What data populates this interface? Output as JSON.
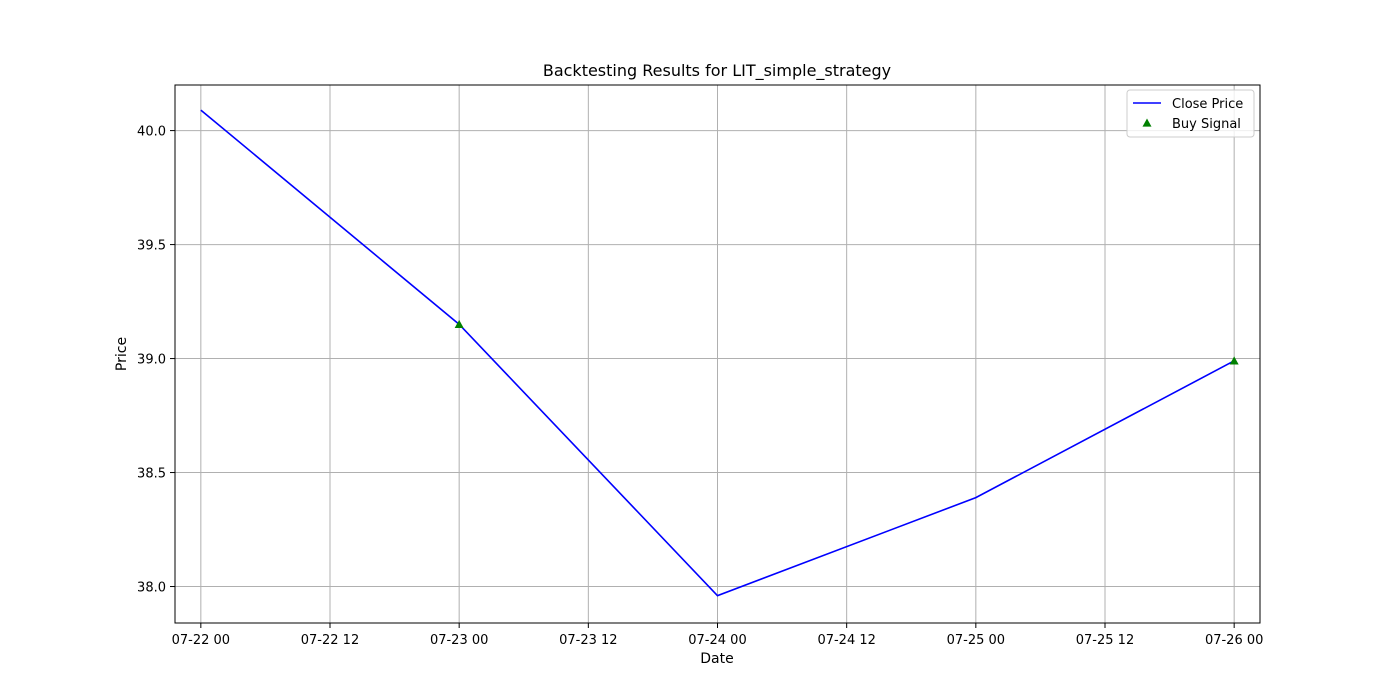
{
  "chart_data": {
    "type": "line",
    "title": "Backtesting Results for LIT_simple_strategy",
    "xlabel": "Date",
    "ylabel": "Price",
    "grid": true,
    "legend_position": "top-right",
    "x_range": [
      "2024-07-21T21:36",
      "2024-07-26T02:24"
    ],
    "ylim": [
      37.84,
      40.2
    ],
    "x_ticks": [
      {
        "x": "2024-07-22T00:00",
        "label": "07-22 00"
      },
      {
        "x": "2024-07-22T12:00",
        "label": "07-22 12"
      },
      {
        "x": "2024-07-23T00:00",
        "label": "07-23 00"
      },
      {
        "x": "2024-07-23T12:00",
        "label": "07-23 12"
      },
      {
        "x": "2024-07-24T00:00",
        "label": "07-24 00"
      },
      {
        "x": "2024-07-24T12:00",
        "label": "07-24 12"
      },
      {
        "x": "2024-07-25T00:00",
        "label": "07-25 00"
      },
      {
        "x": "2024-07-25T12:00",
        "label": "07-25 12"
      },
      {
        "x": "2024-07-26T00:00",
        "label": "07-26 00"
      }
    ],
    "y_ticks": [
      {
        "y": 38.0,
        "label": "38.0"
      },
      {
        "y": 38.5,
        "label": "38.5"
      },
      {
        "y": 39.0,
        "label": "39.0"
      },
      {
        "y": 39.5,
        "label": "39.5"
      },
      {
        "y": 40.0,
        "label": "40.0"
      }
    ],
    "series": [
      {
        "name": "Close Price",
        "kind": "line",
        "color": "#0000ff",
        "x": [
          "2024-07-22T00:00",
          "2024-07-23T00:00",
          "2024-07-24T00:00",
          "2024-07-25T00:00",
          "2024-07-26T00:00"
        ],
        "y": [
          40.09,
          39.15,
          37.96,
          38.39,
          38.99
        ]
      },
      {
        "name": "Buy Signal",
        "kind": "scatter",
        "marker": "triangle-up",
        "color": "#008000",
        "x": [
          "2024-07-23T00:00",
          "2024-07-26T00:00"
        ],
        "y": [
          39.15,
          38.99
        ]
      }
    ]
  }
}
